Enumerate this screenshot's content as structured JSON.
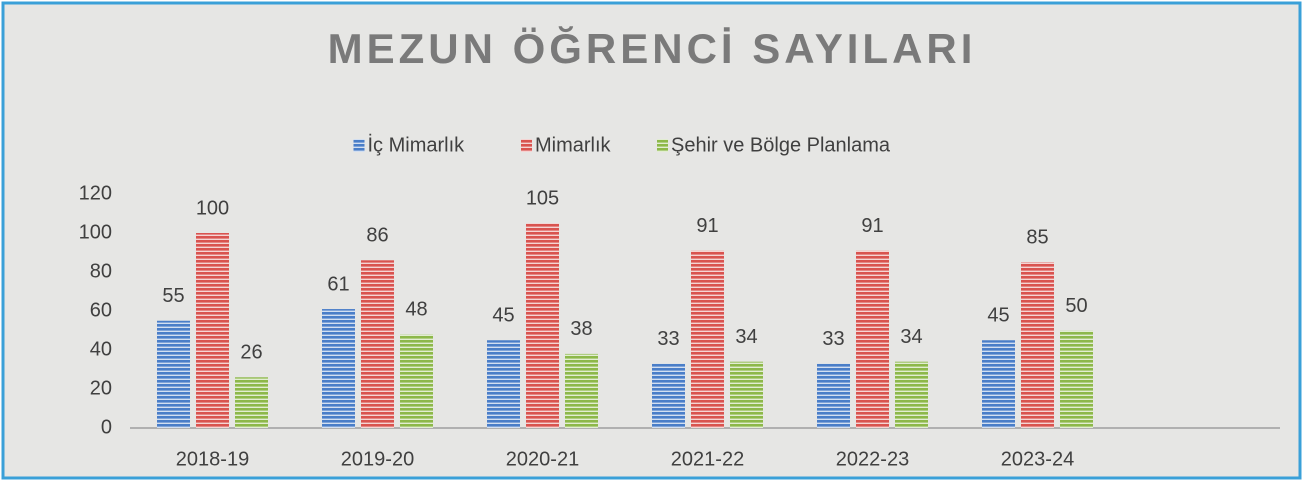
{
  "chart_data": {
    "type": "bar",
    "title": "MEZUN ÖĞRENCİ SAYILARI",
    "categories": [
      "2018-19",
      "2019-20",
      "2020-21",
      "2021-22",
      "2022-23",
      "2023-24",
      null
    ],
    "series": [
      {
        "name": "İç Mimarlık",
        "color": "#4a7ec8",
        "values": [
          55,
          61,
          45,
          33,
          33,
          45,
          null
        ]
      },
      {
        "name": "Mimarlık",
        "color": "#d9534f",
        "values": [
          100,
          86,
          105,
          91,
          91,
          85,
          null
        ]
      },
      {
        "name": "Şehir ve Bölge Planlama",
        "color": "#8db84a",
        "values": [
          26,
          48,
          38,
          34,
          34,
          50,
          null
        ]
      }
    ],
    "ylim": [
      0,
      120
    ],
    "yticks": [
      0,
      20,
      40,
      60,
      80,
      100,
      120
    ],
    "grid": false,
    "legend": "top"
  }
}
